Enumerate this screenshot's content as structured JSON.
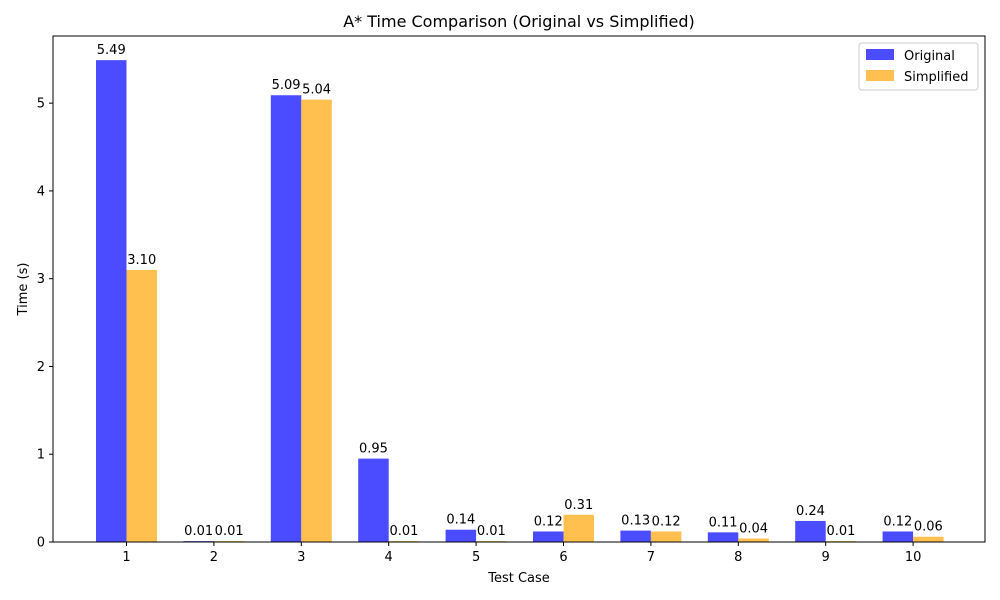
{
  "chart_data": {
    "type": "bar",
    "title": "A* Time Comparison (Original vs Simplified)",
    "xlabel": "Test Case",
    "ylabel": "Time (s)",
    "categories": [
      "1",
      "2",
      "3",
      "4",
      "5",
      "6",
      "7",
      "8",
      "9",
      "10"
    ],
    "series": [
      {
        "name": "Original",
        "color": "#4b4bff",
        "values": [
          5.49,
          0.01,
          5.09,
          0.95,
          0.14,
          0.12,
          0.13,
          0.11,
          0.24,
          0.12
        ],
        "labels": [
          "5.49",
          "0.01",
          "5.09",
          "0.95",
          "0.14",
          "0.12",
          "0.13",
          "0.11",
          "0.24",
          "0.12"
        ]
      },
      {
        "name": "Simplified",
        "color": "#ffc04f",
        "values": [
          3.1,
          0.01,
          5.04,
          0.01,
          0.01,
          0.31,
          0.12,
          0.04,
          0.01,
          0.06
        ],
        "labels": [
          "3.10",
          "0.01",
          "5.04",
          "0.01",
          "0.01",
          "0.31",
          "0.12",
          "0.04",
          "0.01",
          "0.06"
        ]
      }
    ],
    "ylim": [
      0,
      5.765
    ],
    "yticks": [
      0,
      1,
      2,
      3,
      4,
      5
    ],
    "grid": false,
    "legend_position": "top-right"
  }
}
